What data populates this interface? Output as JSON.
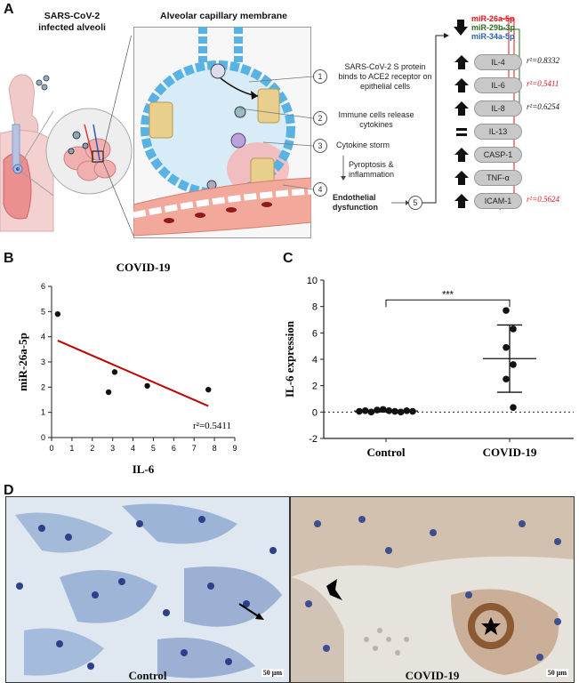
{
  "panel_a": {
    "label": "A",
    "infected_alveoli_title_1": "SARS-CoV-2",
    "infected_alveoli_title_2": "infected alveoli",
    "membrane_title": "Alveolar capillary membrane",
    "steps": [
      {
        "num": "1",
        "text": "SARS-CoV-2 S protein binds to ACE2 receptor on epithelial cells"
      },
      {
        "num": "2",
        "text": "Immune cells release cytokines"
      },
      {
        "num": "3",
        "text": "Cytokine storm"
      },
      {
        "num": "4",
        "text": "Endothelial dysfunction"
      },
      {
        "num": "5",
        "text": ""
      }
    ],
    "pyroptosis_text": "Pyroptosis & inflammation",
    "mirnas": [
      {
        "name": "miR-26a-5p",
        "color": "#e0151b"
      },
      {
        "name": "miR-29b-3p",
        "color": "#2e6e1e"
      },
      {
        "name": "miR-34a-5p",
        "color": "#2a61b0"
      }
    ],
    "markers": [
      {
        "name": "IL-4",
        "direction": "up",
        "r2": "r²=0.8332",
        "r2_color": "#111111"
      },
      {
        "name": "IL-6",
        "direction": "up",
        "r2": "r²=0.5411",
        "r2_color": "#e0151b"
      },
      {
        "name": "IL-8",
        "direction": "up",
        "r2": "r²=0.6254",
        "r2_color": "#111111"
      },
      {
        "name": "IL-13",
        "direction": "equal",
        "r2": "",
        "r2_color": "#111111"
      },
      {
        "name": "CASP-1",
        "direction": "up",
        "r2": "",
        "r2_color": "#111111"
      },
      {
        "name": "TNF-α",
        "direction": "up",
        "r2": "",
        "r2_color": "#111111"
      },
      {
        "name": "ICAM-1",
        "direction": "up",
        "r2": "r²=0.5624",
        "r2_color": "#e0151b"
      }
    ]
  },
  "chart_data": [
    {
      "panel": "B",
      "type": "scatter",
      "title": "COVID-19",
      "xlabel": "IL-6",
      "ylabel": "miR-26a-5p",
      "xlim": [
        0,
        9
      ],
      "ylim": [
        0,
        6
      ],
      "xticks": [
        "0",
        "1",
        "2",
        "3",
        "4",
        "5",
        "6",
        "7",
        "8",
        "9"
      ],
      "yticks": [
        "0",
        "1",
        "2",
        "3",
        "4",
        "5",
        "6"
      ],
      "points": [
        [
          0.3,
          4.9
        ],
        [
          2.8,
          1.8
        ],
        [
          3.1,
          2.6
        ],
        [
          4.7,
          2.05
        ],
        [
          7.7,
          1.9
        ]
      ],
      "regression": [
        [
          0.3,
          3.85
        ],
        [
          7.7,
          1.25
        ]
      ],
      "regression_color": "#c00000",
      "annotation": "r²=0.5411"
    },
    {
      "panel": "C",
      "type": "scatter",
      "xlabel": "",
      "ylabel": "IL-6 expression",
      "ylim": [
        -2,
        10
      ],
      "yticks": [
        "-2",
        "0",
        "2",
        "4",
        "6",
        "8",
        "10"
      ],
      "categories": [
        "Control",
        "COVID-19"
      ],
      "series": [
        {
          "name": "Control",
          "values": [
            0.05,
            0.1,
            0.0,
            0.15,
            0.2,
            0.1,
            0.05,
            0.0,
            0.1,
            0.05
          ],
          "mean": 0.08,
          "sd": 0.07
        },
        {
          "name": "COVID-19",
          "values": [
            7.7,
            6.3,
            4.9,
            3.6,
            2.5,
            0.35
          ],
          "mean": 4.05,
          "sd": 2.55
        }
      ],
      "significance": "***",
      "baseline": 0
    }
  ],
  "panel_b": {
    "label": "B"
  },
  "panel_c": {
    "label": "C"
  },
  "panel_d": {
    "label": "D",
    "left_caption": "Control",
    "right_caption": "COVID-19",
    "scale_left": "50 μm",
    "scale_right": "50 μm"
  }
}
